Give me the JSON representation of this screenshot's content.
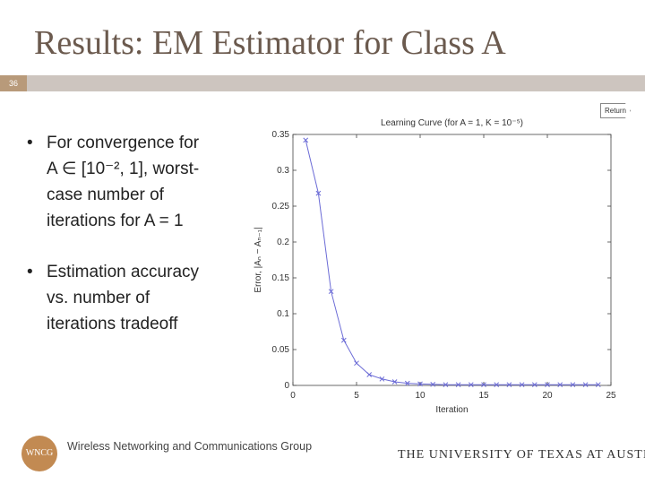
{
  "slide": {
    "title": "Results: EM Estimator for Class A",
    "number": "36",
    "return_label": "Return"
  },
  "bullets": [
    {
      "marker": "•",
      "lines": [
        "For convergence for",
        "A ∈ [10⁻², 1], worst-",
        "case number of",
        "iterations for A = 1"
      ]
    },
    {
      "marker": "•",
      "lines": [
        "Estimation accuracy",
        "vs. number of",
        "iterations tradeoff"
      ]
    }
  ],
  "footer": {
    "logo_text": "WNCG",
    "group": "Wireless Networking and Communications Group",
    "university": "THE UNIVERSITY OF TEXAS AT AUSTIN"
  },
  "chart_data": {
    "type": "line",
    "title": "Learning Curve (for A = 1, K = 10⁻⁵)",
    "xlabel": "Iteration",
    "ylabel": "Error, |Aₙ − Aₙ₋₁|",
    "xlim": [
      0,
      25
    ],
    "ylim": [
      0,
      0.35
    ],
    "xticks": [
      "0",
      "5",
      "10",
      "15",
      "20",
      "25"
    ],
    "yticks": [
      "0",
      "0.05",
      "0.1",
      "0.15",
      "0.2",
      "0.25",
      "0.3",
      "0.35"
    ],
    "grid": false,
    "marker": "x",
    "color": "#6b6bd6",
    "series": [
      {
        "x": [
          1,
          2,
          3,
          4,
          5,
          6,
          7,
          8,
          9,
          10,
          11,
          12,
          13,
          14,
          15,
          16,
          17,
          18,
          19,
          20,
          21,
          22,
          23,
          24
        ],
        "values": [
          0.342,
          0.268,
          0.131,
          0.063,
          0.031,
          0.015,
          0.009,
          0.005,
          0.003,
          0.002,
          0.0015,
          0.001,
          0.001,
          0.001,
          0.001,
          0.001,
          0.001,
          0.001,
          0.001,
          0.001,
          0.001,
          0.001,
          0.001,
          0.001
        ]
      }
    ]
  }
}
